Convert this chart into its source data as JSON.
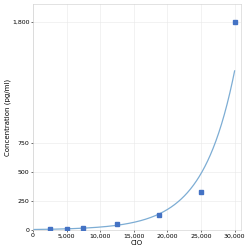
{
  "x_data": [
    2500,
    5000,
    7500,
    12500,
    18750,
    25000,
    30000
  ],
  "y_data": [
    5,
    10,
    20,
    50,
    125,
    325,
    1800
  ],
  "x_label": "CIO",
  "y_label": "Concentration (pg/ml)",
  "x_lim": [
    0,
    31000
  ],
  "y_lim": [
    0,
    1950
  ],
  "x_ticks": [
    0,
    5000,
    10000,
    15000,
    20000,
    25000,
    30000
  ],
  "y_ticks": [
    0,
    250,
    500,
    750,
    1800
  ],
  "line_color": "#7dadd4",
  "marker_color": "#4472c4",
  "marker_size": 2.5,
  "line_width": 0.9,
  "bg_color": "#ffffff",
  "grid_color": "#e8e8e8",
  "axis_fontsize": 5,
  "tick_fontsize": 4.5
}
